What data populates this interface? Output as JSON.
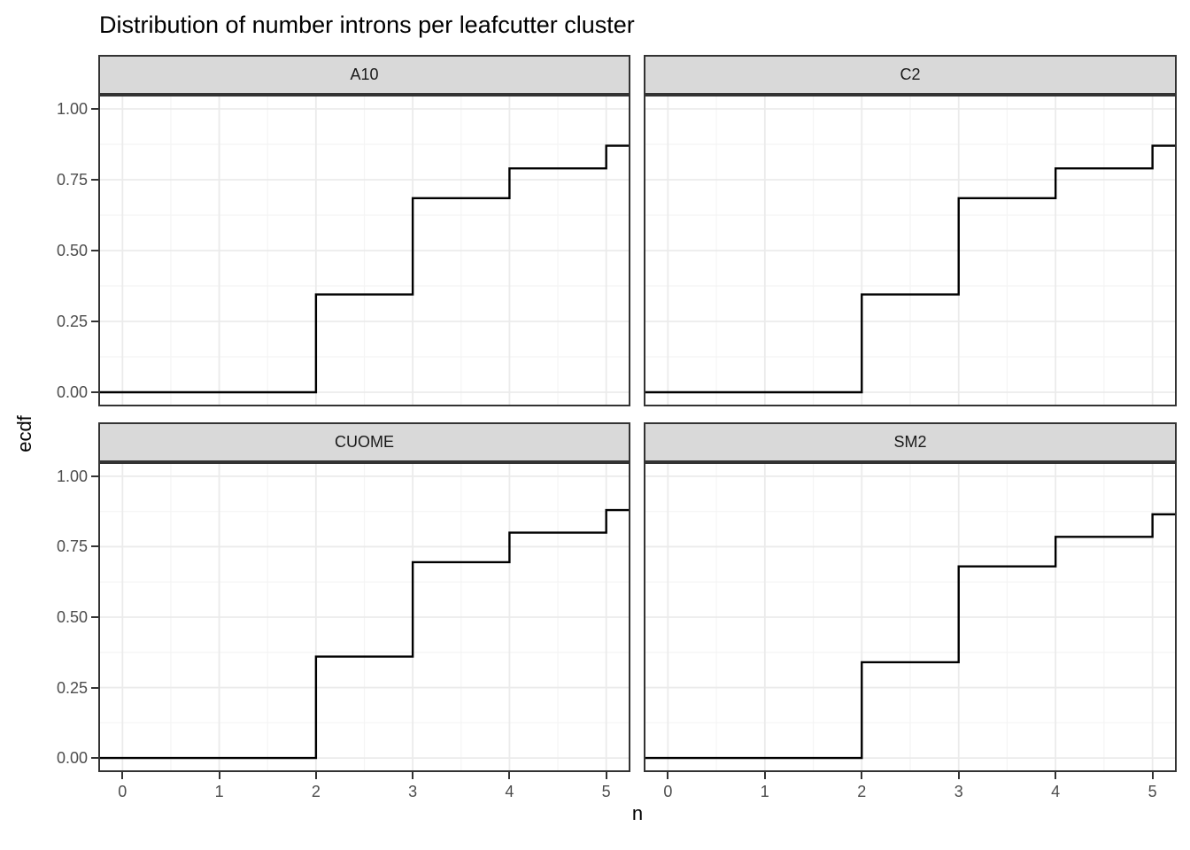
{
  "title": "Distribution of number introns per leafcutter cluster",
  "axes": {
    "x_label": "n",
    "y_label": "ecdf",
    "x_ticks": [
      "0",
      "1",
      "2",
      "3",
      "4",
      "5"
    ],
    "y_ticks": [
      "1.00",
      "0.75",
      "0.50",
      "0.25",
      "0.00"
    ]
  },
  "colors": {
    "step_line": "#000000",
    "panel_border": "#333333",
    "strip_background": "#D9D9D9",
    "strip_border": "#333333",
    "grid_major": "#EBEBEB",
    "grid_minor": "#F4F4F4",
    "axis_text": "#4D4D4D",
    "tick_mark": "#333333",
    "title_text": "#000000"
  },
  "chart_data": {
    "type": "line",
    "subtype": "ecdf-step",
    "title": "Distribution of number introns per leafcutter cluster",
    "xlabel": "n",
    "ylabel": "ecdf",
    "xlim": [
      -0.25,
      5.25
    ],
    "ylim": [
      -0.05,
      1.05
    ],
    "x_major_ticks": [
      0,
      1,
      2,
      3,
      4,
      5
    ],
    "y_major_ticks": [
      0,
      0.25,
      0.5,
      0.75,
      1.0
    ],
    "grid": "major+minor",
    "legend_position": "none",
    "facet_layout": "2x2",
    "facets": [
      {
        "label": "A10",
        "steps": {
          "x": [
            2,
            3,
            4,
            5
          ],
          "y": [
            0.345,
            0.685,
            0.79,
            0.87
          ]
        },
        "start_y": 0
      },
      {
        "label": "C2",
        "steps": {
          "x": [
            2,
            3,
            4,
            5
          ],
          "y": [
            0.345,
            0.685,
            0.79,
            0.87
          ]
        },
        "start_y": 0
      },
      {
        "label": "CUOME",
        "steps": {
          "x": [
            2,
            3,
            4,
            5
          ],
          "y": [
            0.36,
            0.695,
            0.8,
            0.88
          ]
        },
        "start_y": 0
      },
      {
        "label": "SM2",
        "steps": {
          "x": [
            2,
            3,
            4,
            5
          ],
          "y": [
            0.34,
            0.68,
            0.785,
            0.865
          ]
        },
        "start_y": 0
      }
    ]
  }
}
